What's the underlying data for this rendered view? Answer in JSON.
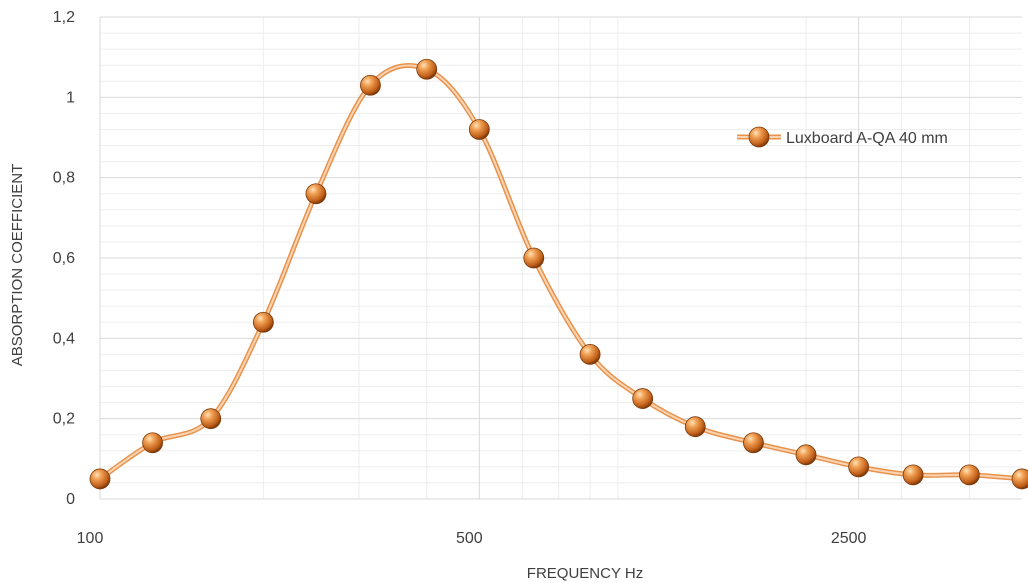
{
  "chart_data": {
    "type": "line",
    "x_scale": "log",
    "xlabel": "FREQUENCY Hz",
    "ylabel": "ABSORPTION COEFFICIENT",
    "ylim": [
      0,
      1.2
    ],
    "xlim": [
      100,
      5000
    ],
    "y_ticks": [
      "0",
      "0,2",
      "0,4",
      "0,6",
      "0,8",
      "1",
      "1,2"
    ],
    "x_tick_labels": [
      {
        "value": 100,
        "label": "100"
      },
      {
        "value": 500,
        "label": "500"
      },
      {
        "value": 2500,
        "label": "2500"
      }
    ],
    "grid": true,
    "legend_position": "top-right",
    "series": [
      {
        "name": "Luxboard A-QA 40 mm",
        "color": "#e8934d",
        "x": [
          100,
          125,
          160,
          200,
          250,
          315,
          400,
          500,
          630,
          800,
          1000,
          1250,
          1600,
          2000,
          2500,
          3150,
          4000,
          5000
        ],
        "values": [
          0.05,
          0.14,
          0.2,
          0.44,
          0.76,
          1.03,
          1.07,
          0.92,
          0.6,
          0.36,
          0.25,
          0.18,
          0.14,
          0.11,
          0.08,
          0.06,
          0.06,
          0.05
        ]
      }
    ]
  }
}
